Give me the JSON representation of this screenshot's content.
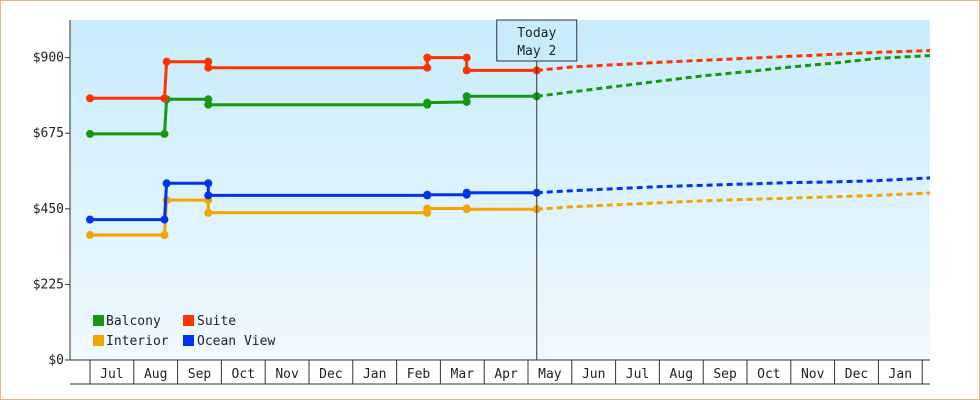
{
  "chart_data": {
    "type": "line",
    "title": "",
    "xlabel": "",
    "ylabel": "",
    "ylim": [
      0,
      1012
    ],
    "y_ticks": [
      {
        "value": 0,
        "label": "$0"
      },
      {
        "value": 225,
        "label": "$225"
      },
      {
        "value": 450,
        "label": "$450"
      },
      {
        "value": 675,
        "label": "$675"
      },
      {
        "value": 900,
        "label": "$900"
      }
    ],
    "x_months": [
      "Jul",
      "Aug",
      "Sep",
      "Oct",
      "Nov",
      "Dec",
      "Jan",
      "Feb",
      "Mar",
      "Apr",
      "May",
      "Jun",
      "Jul",
      "Aug",
      "Sep",
      "Oct",
      "Nov",
      "Dec",
      "Jan"
    ],
    "today_marker": {
      "line1": "Today",
      "line2": "May 2",
      "x": 10.2
    },
    "legend": {
      "placement": "bottom-left"
    },
    "grid": false,
    "colors": {
      "plot_bg_top": "#c8ecfa",
      "plot_bg_bottom": "#f0f9fe",
      "frame_border": "#f2b47a"
    },
    "series": [
      {
        "name": "Balcony",
        "color": "#119911",
        "points": [
          [
            0,
            673
          ],
          [
            1.7,
            673
          ],
          [
            1.7,
            673
          ],
          [
            1.75,
            776
          ],
          [
            1.75,
            776
          ],
          [
            2.7,
            776
          ],
          [
            2.7,
            776
          ],
          [
            2.7,
            760
          ],
          [
            2.7,
            760
          ],
          [
            7.7,
            760
          ],
          [
            7.7,
            760
          ],
          [
            7.7,
            766
          ],
          [
            7.7,
            766
          ],
          [
            8.6,
            768
          ],
          [
            8.6,
            768
          ],
          [
            8.6,
            785
          ],
          [
            8.6,
            785
          ],
          [
            10.2,
            785
          ]
        ],
        "forecast": [
          [
            10.2,
            785
          ],
          [
            11,
            798
          ],
          [
            12,
            814
          ],
          [
            13,
            830
          ],
          [
            14,
            846
          ],
          [
            15,
            858
          ],
          [
            16,
            872
          ],
          [
            17,
            884
          ],
          [
            18,
            898
          ],
          [
            19.2,
            906
          ]
        ]
      },
      {
        "name": "Suite",
        "color": "#ff3300",
        "points": [
          [
            0,
            779
          ],
          [
            1.7,
            779
          ],
          [
            1.7,
            779
          ],
          [
            1.75,
            888
          ],
          [
            1.75,
            888
          ],
          [
            2.7,
            888
          ],
          [
            2.7,
            888
          ],
          [
            2.7,
            870
          ],
          [
            2.7,
            870
          ],
          [
            7.7,
            870
          ],
          [
            7.7,
            870
          ],
          [
            7.7,
            900
          ],
          [
            7.7,
            900
          ],
          [
            8.6,
            900
          ],
          [
            8.6,
            900
          ],
          [
            8.6,
            862
          ],
          [
            8.6,
            862
          ],
          [
            10.2,
            862
          ]
        ],
        "forecast": [
          [
            10.2,
            862
          ],
          [
            11,
            872
          ],
          [
            12,
            879
          ],
          [
            13,
            886
          ],
          [
            14,
            892
          ],
          [
            15,
            898
          ],
          [
            16,
            904
          ],
          [
            17,
            910
          ],
          [
            18,
            916
          ],
          [
            19.2,
            921
          ]
        ]
      },
      {
        "name": "Interior",
        "color": "#f5a300",
        "points": [
          [
            0,
            372
          ],
          [
            1.7,
            372
          ],
          [
            1.7,
            372
          ],
          [
            1.75,
            476
          ],
          [
            1.75,
            476
          ],
          [
            2.7,
            476
          ],
          [
            2.7,
            476
          ],
          [
            2.7,
            438
          ],
          [
            2.7,
            438
          ],
          [
            7.7,
            438
          ],
          [
            7.7,
            438
          ],
          [
            7.7,
            451
          ],
          [
            7.7,
            451
          ],
          [
            8.6,
            451
          ],
          [
            8.6,
            451
          ],
          [
            8.6,
            449
          ],
          [
            8.6,
            449
          ],
          [
            10.2,
            449
          ]
        ],
        "forecast": [
          [
            10.2,
            449
          ],
          [
            11,
            456
          ],
          [
            12,
            462
          ],
          [
            13,
            468
          ],
          [
            14,
            474
          ],
          [
            15,
            478
          ],
          [
            16,
            482
          ],
          [
            17,
            486
          ],
          [
            18,
            490
          ],
          [
            19.2,
            497
          ]
        ]
      },
      {
        "name": "Ocean View",
        "color": "#0033ee",
        "points": [
          [
            0,
            418
          ],
          [
            1.7,
            418
          ],
          [
            1.7,
            418
          ],
          [
            1.75,
            526
          ],
          [
            1.75,
            526
          ],
          [
            2.7,
            526
          ],
          [
            2.7,
            526
          ],
          [
            2.7,
            490
          ],
          [
            2.7,
            490
          ],
          [
            7.7,
            490
          ],
          [
            7.7,
            490
          ],
          [
            7.7,
            492
          ],
          [
            7.7,
            492
          ],
          [
            8.6,
            492
          ],
          [
            8.6,
            492
          ],
          [
            8.6,
            498
          ],
          [
            8.6,
            498
          ],
          [
            10.2,
            498
          ]
        ],
        "forecast": [
          [
            10.2,
            498
          ],
          [
            11,
            504
          ],
          [
            12,
            510
          ],
          [
            13,
            516
          ],
          [
            14,
            520
          ],
          [
            15,
            524
          ],
          [
            16,
            528
          ],
          [
            17,
            530
          ],
          [
            18,
            534
          ],
          [
            19.2,
            542
          ]
        ]
      }
    ]
  }
}
